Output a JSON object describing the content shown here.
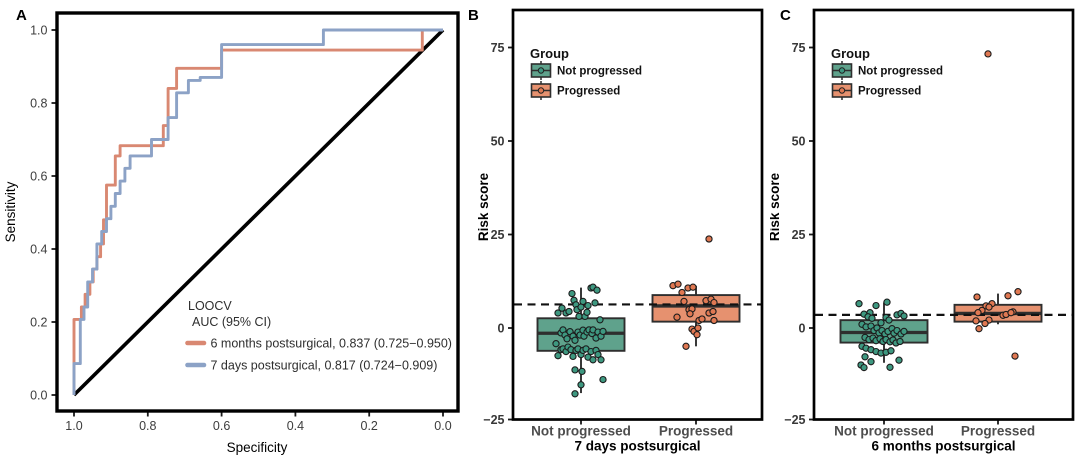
{
  "colors": {
    "roc_orange": "#D98872",
    "roc_blue": "#8CA2C6",
    "teal_box": "#5FA28C",
    "teal_point": "#3E9880",
    "salmon_box": "#E6916F",
    "salmon_point": "#E07852",
    "box_border": "#2e2e2e",
    "reference_black": "#000000"
  },
  "chart_data": [
    {
      "type": "line",
      "panel_label": "A",
      "name": "LOOCV ROC curves",
      "xlabel": "Specificity",
      "ylabel": "Sensitivity",
      "x_tick_labels": [
        "1.0",
        "0.8",
        "0.6",
        "0.4",
        "0.2",
        "0.0"
      ],
      "x_tick_values": [
        1.0,
        0.8,
        0.6,
        0.4,
        0.2,
        0.0
      ],
      "y_tick_labels": [
        "0.0",
        "0.2",
        "0.4",
        "0.6",
        "0.8",
        "1.0"
      ],
      "y_tick_values": [
        0.0,
        0.2,
        0.4,
        0.6,
        0.8,
        1.0
      ],
      "xlim": [
        1.0,
        0.0
      ],
      "ylim": [
        0.0,
        1.0
      ],
      "x_axis_reversed": true,
      "diagonal_reference_line": true,
      "legend": {
        "title_lines": [
          "LOOCV",
          "AUC (95% CI)"
        ],
        "position": "bottom-right-inside"
      },
      "series": [
        {
          "name": "6 months postsurgical",
          "auc": 0.837,
          "auc_ci": "0.725−0.950",
          "label": "6 months postsurgical, 0.837 (0.725−0.950)",
          "color": "#D98872",
          "points": [
            [
              1.0,
              0.0
            ],
            [
              1.0,
              0.207
            ],
            [
              0.98,
              0.207
            ],
            [
              0.98,
              0.241
            ],
            [
              0.97,
              0.241
            ],
            [
              0.97,
              0.276
            ],
            [
              0.957,
              0.276
            ],
            [
              0.957,
              0.31
            ],
            [
              0.948,
              0.31
            ],
            [
              0.948,
              0.345
            ],
            [
              0.938,
              0.345
            ],
            [
              0.938,
              0.379
            ],
            [
              0.928,
              0.379
            ],
            [
              0.928,
              0.414
            ],
            [
              0.92,
              0.414
            ],
            [
              0.92,
              0.48
            ],
            [
              0.912,
              0.48
            ],
            [
              0.912,
              0.575
            ],
            [
              0.888,
              0.575
            ],
            [
              0.888,
              0.655
            ],
            [
              0.875,
              0.655
            ],
            [
              0.875,
              0.683
            ],
            [
              0.758,
              0.683
            ],
            [
              0.758,
              0.738
            ],
            [
              0.745,
              0.738
            ],
            [
              0.745,
              0.84
            ],
            [
              0.722,
              0.84
            ],
            [
              0.722,
              0.895
            ],
            [
              0.6,
              0.895
            ],
            [
              0.6,
              0.945
            ],
            [
              0.056,
              0.945
            ],
            [
              0.056,
              1.0
            ],
            [
              0.0,
              1.0
            ]
          ]
        },
        {
          "name": "7 days postsurgical",
          "auc": 0.817,
          "auc_ci": "0.724−0.909",
          "label": "7 days postsurgical, 0.817 (0.724−0.909)",
          "color": "#8CA2C6",
          "points": [
            [
              1.0,
              0.0
            ],
            [
              1.0,
              0.086
            ],
            [
              0.983,
              0.086
            ],
            [
              0.983,
              0.207
            ],
            [
              0.973,
              0.207
            ],
            [
              0.973,
              0.241
            ],
            [
              0.963,
              0.241
            ],
            [
              0.963,
              0.31
            ],
            [
              0.95,
              0.31
            ],
            [
              0.95,
              0.345
            ],
            [
              0.938,
              0.345
            ],
            [
              0.938,
              0.414
            ],
            [
              0.925,
              0.414
            ],
            [
              0.925,
              0.448
            ],
            [
              0.912,
              0.448
            ],
            [
              0.912,
              0.483
            ],
            [
              0.9,
              0.483
            ],
            [
              0.9,
              0.517
            ],
            [
              0.888,
              0.517
            ],
            [
              0.888,
              0.552
            ],
            [
              0.875,
              0.552
            ],
            [
              0.875,
              0.586
            ],
            [
              0.862,
              0.586
            ],
            [
              0.862,
              0.621
            ],
            [
              0.848,
              0.621
            ],
            [
              0.848,
              0.655
            ],
            [
              0.79,
              0.655
            ],
            [
              0.79,
              0.7
            ],
            [
              0.745,
              0.7
            ],
            [
              0.745,
              0.76
            ],
            [
              0.722,
              0.76
            ],
            [
              0.722,
              0.828
            ],
            [
              0.69,
              0.828
            ],
            [
              0.69,
              0.862
            ],
            [
              0.658,
              0.862
            ],
            [
              0.658,
              0.87
            ],
            [
              0.6,
              0.87
            ],
            [
              0.6,
              0.96
            ],
            [
              0.324,
              0.96
            ],
            [
              0.324,
              1.0
            ],
            [
              0.0,
              1.0
            ]
          ]
        }
      ]
    },
    {
      "type": "box",
      "panel_label": "B",
      "name": "Risk score by group, 7 days postsurgical",
      "xlabel": "7 days postsurgical",
      "ylabel": "Risk score",
      "y_tick_labels": [
        "75",
        "50",
        "25",
        "0",
        "−25"
      ],
      "y_tick_values": [
        75,
        50,
        25,
        0,
        -25
      ],
      "ylim": [
        -26,
        85
      ],
      "categories": [
        "Not progressed",
        "Progressed"
      ],
      "cutoff_dashed_line_y": 6.3,
      "legend": {
        "title": "Group",
        "entries": [
          "Not progressed",
          "Progressed"
        ]
      },
      "groups": [
        {
          "name": "Not progressed",
          "box_color": "#5FA28C",
          "point_color": "#3E9880",
          "q1": -6.1,
          "median": -1.4,
          "q3": 2.6,
          "whisker_low": -17.4,
          "whisker_high": 10.8,
          "points": [
            [
              -23,
              4.0
            ],
            [
              -19,
              5.3
            ],
            [
              -15,
              4.0
            ],
            [
              -12,
              4.4
            ],
            [
              -9,
              9.2
            ],
            [
              -7,
              7.4
            ],
            [
              -5,
              6.2
            ],
            [
              -4,
              4.9
            ],
            [
              -2,
              3.1
            ],
            [
              0,
              5.6
            ],
            [
              2,
              7.1
            ],
            [
              4,
              3.1
            ],
            [
              6,
              4.2
            ],
            [
              7,
              6.0
            ],
            [
              10,
              10.7
            ],
            [
              12,
              10.9
            ],
            [
              14,
              6.7
            ],
            [
              16,
              10.1
            ],
            [
              19,
              2.2
            ],
            [
              -20,
              -1.3
            ],
            [
              -18,
              -0.5
            ],
            [
              -16,
              -1.9
            ],
            [
              -14,
              -2.9
            ],
            [
              -11,
              -1.0
            ],
            [
              -8,
              -2.2
            ],
            [
              -6,
              -3.3
            ],
            [
              -3,
              -1.1
            ],
            [
              -1,
              -1.9
            ],
            [
              2,
              -0.6
            ],
            [
              3,
              -2.2
            ],
            [
              6,
              -1.1
            ],
            [
              8,
              -0.5
            ],
            [
              11,
              -1.5
            ],
            [
              12,
              -0.5
            ],
            [
              15,
              -2.7
            ],
            [
              17,
              -1.1
            ],
            [
              20,
              -2.2
            ],
            [
              22,
              -0.9
            ],
            [
              -25,
              -4.2
            ],
            [
              -23,
              -7.4
            ],
            [
              -20,
              -5.8
            ],
            [
              -18,
              -5.6
            ],
            [
              -15,
              -6.3
            ],
            [
              -13,
              -5.1
            ],
            [
              -10,
              -5.8
            ],
            [
              -8,
              -7.6
            ],
            [
              -5,
              -6.0
            ],
            [
              -3,
              -5.6
            ],
            [
              0,
              -7.1
            ],
            [
              2,
              -6.0
            ],
            [
              5,
              -5.6
            ],
            [
              7,
              -7.8
            ],
            [
              10,
              -6.3
            ],
            [
              12,
              -8.5
            ],
            [
              15,
              -6.0
            ],
            [
              17,
              -7.1
            ],
            [
              20,
              -8.5
            ],
            [
              -6,
              -11.2
            ],
            [
              1,
              -11.6
            ],
            [
              22,
              -13.8
            ],
            [
              -6,
              -17.6
            ],
            [
              0,
              -15.2
            ]
          ]
        },
        {
          "name": "Progressed",
          "box_color": "#E6916F",
          "point_color": "#E07852",
          "q1": 1.7,
          "median": 5.9,
          "q3": 8.8,
          "whisker_low": -4.9,
          "whisker_high": 11.3,
          "points": [
            [
              -23,
              11.3
            ],
            [
              -18,
              11.7
            ],
            [
              -8,
              10.7
            ],
            [
              -3,
              10.9
            ],
            [
              -14,
              9.5
            ],
            [
              -12,
              7.1
            ],
            [
              10,
              7.3
            ],
            [
              15,
              7.7
            ],
            [
              18,
              6.8
            ],
            [
              -7,
              4.9
            ],
            [
              -4,
              5.1
            ],
            [
              -6,
              3.8
            ],
            [
              -19,
              2.9
            ],
            [
              13,
              4.0
            ],
            [
              17,
              4.4
            ],
            [
              3,
              2.0
            ],
            [
              6,
              2.4
            ],
            [
              18,
              2.0
            ],
            [
              -4,
              -0.3
            ],
            [
              -2,
              -0.9
            ],
            [
              2,
              0.0
            ],
            [
              1,
              -1.8
            ],
            [
              -10,
              -4.9
            ],
            [
              13,
              23.8
            ]
          ]
        }
      ]
    },
    {
      "type": "box",
      "panel_label": "C",
      "name": "Risk score by group, 6 months postsurgical",
      "xlabel": "6 months postsurgical",
      "ylabel": "Risk score",
      "y_tick_labels": [
        "75",
        "50",
        "25",
        "0",
        "−25"
      ],
      "y_tick_values": [
        75,
        50,
        25,
        0,
        -25
      ],
      "ylim": [
        -26,
        85
      ],
      "categories": [
        "Not progressed",
        "Progressed"
      ],
      "cutoff_dashed_line_y": 3.5,
      "legend": {
        "title": "Group",
        "entries": [
          "Not progressed",
          "Progressed"
        ]
      },
      "groups": [
        {
          "name": "Not progressed",
          "box_color": "#5FA28C",
          "point_color": "#3E9880",
          "q1": -3.9,
          "median": -1.2,
          "q3": 2.1,
          "whisker_low": -9.3,
          "whisker_high": 6.8,
          "points": [
            [
              -25,
              6.5
            ],
            [
              -8,
              6.0
            ],
            [
              3,
              6.9
            ],
            [
              -20,
              3.7
            ],
            [
              -14,
              4.1
            ],
            [
              -16,
              3.0
            ],
            [
              -12,
              2.6
            ],
            [
              -3,
              1.4
            ],
            [
              2,
              2.8
            ],
            [
              5,
              2.1
            ],
            [
              13,
              3.5
            ],
            [
              17,
              3.9
            ],
            [
              20,
              3.2
            ],
            [
              -22,
              1.0
            ],
            [
              -18,
              0.3
            ],
            [
              -13,
              0.5
            ],
            [
              -10,
              -0.7
            ],
            [
              -7,
              0.0
            ],
            [
              -5,
              -1.3
            ],
            [
              -2,
              -0.7
            ],
            [
              1,
              -1.6
            ],
            [
              4,
              -0.9
            ],
            [
              8,
              -0.2
            ],
            [
              10,
              -1.4
            ],
            [
              13,
              -0.7
            ],
            [
              17,
              -1.6
            ],
            [
              20,
              -0.9
            ],
            [
              -19,
              -2.5
            ],
            [
              -15,
              -3.1
            ],
            [
              -11,
              -2.7
            ],
            [
              -8,
              -3.4
            ],
            [
              -4,
              -2.9
            ],
            [
              -1,
              -3.6
            ],
            [
              2,
              -3.1
            ],
            [
              6,
              -3.7
            ],
            [
              9,
              -3.2
            ],
            [
              12,
              -4.0
            ],
            [
              16,
              -3.6
            ],
            [
              -22,
              -4.9
            ],
            [
              -18,
              -5.4
            ],
            [
              -13,
              -5.8
            ],
            [
              -8,
              -6.3
            ],
            [
              -3,
              -6.7
            ],
            [
              2,
              -6.5
            ],
            [
              7,
              -6.1
            ],
            [
              -19,
              -7.7
            ],
            [
              -13,
              -9.0
            ],
            [
              15,
              -8.6
            ],
            [
              -23,
              -9.9
            ],
            [
              -20,
              -10.6
            ],
            [
              6,
              -10.5
            ]
          ]
        },
        {
          "name": "Progressed",
          "box_color": "#E6916F",
          "point_color": "#E07852",
          "q1": 1.7,
          "median": 3.9,
          "q3": 6.2,
          "whisker_low": 1.0,
          "whisker_high": 9.2,
          "points": [
            [
              -21,
              8.3
            ],
            [
              10,
              8.6
            ],
            [
              20,
              9.7
            ],
            [
              -6,
              6.5
            ],
            [
              -12,
              5.9
            ],
            [
              -9,
              5.6
            ],
            [
              -16,
              4.7
            ],
            [
              -20,
              4.1
            ],
            [
              5,
              3.4
            ],
            [
              8,
              3.6
            ],
            [
              15,
              4.3
            ],
            [
              13,
              4.1
            ],
            [
              -22,
              1.9
            ],
            [
              -9,
              2.1
            ],
            [
              -13,
              1.2
            ],
            [
              -19,
              -0.2
            ],
            [
              17,
              -7.5
            ],
            [
              -10,
              73.3
            ]
          ]
        }
      ]
    }
  ]
}
